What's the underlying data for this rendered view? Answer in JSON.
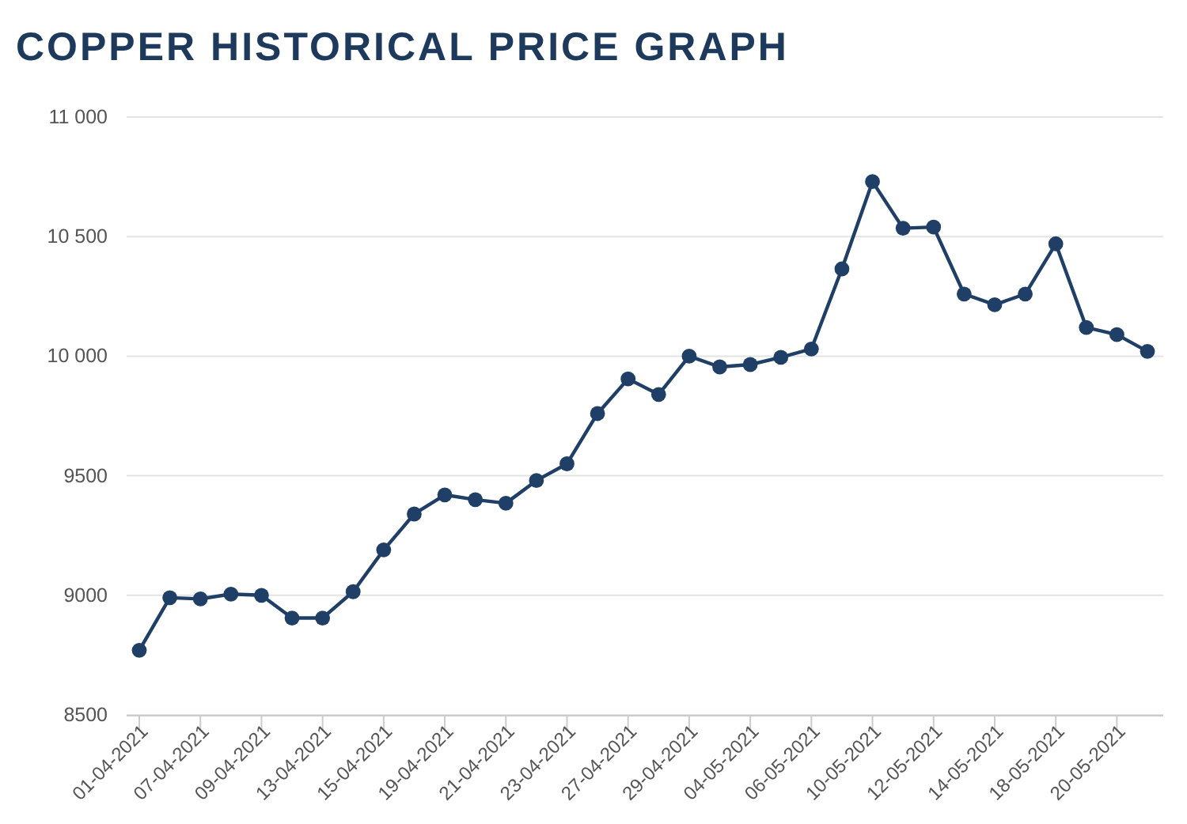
{
  "chart_data": {
    "type": "line",
    "title": "COPPER HISTORICAL PRICE GRAPH",
    "categories": [
      "01-04-2021",
      null,
      "07-04-2021",
      null,
      "09-04-2021",
      null,
      "13-04-2021",
      null,
      "15-04-2021",
      null,
      "19-04-2021",
      null,
      "21-04-2021",
      null,
      "23-04-2021",
      null,
      "27-04-2021",
      null,
      "29-04-2021",
      null,
      "04-05-2021",
      null,
      "06-05-2021",
      null,
      "10-05-2021",
      null,
      "12-05-2021",
      null,
      "14-05-2021",
      null,
      "18-05-2021",
      null,
      "20-05-2021",
      null
    ],
    "series": [
      {
        "color": "#1f3f66",
        "values": [
          8770,
          8990,
          8985,
          9005,
          9000,
          8905,
          8905,
          9015,
          9190,
          9340,
          9420,
          9400,
          9385,
          9480,
          9550,
          9760,
          9905,
          9840,
          10000,
          9955,
          9965,
          9995,
          10030,
          10365,
          10730,
          10535,
          10540,
          10260,
          10215,
          10260,
          10470,
          10120,
          10090,
          10020
        ]
      }
    ],
    "ylim": [
      8500,
      11000
    ],
    "yticks": [
      8500,
      9000,
      9500,
      {
        "value": 10000,
        "label": "10 000"
      },
      {
        "value": 10500,
        "label": "10 500"
      },
      {
        "value": 11000,
        "label": "11 000"
      }
    ],
    "grid": "y",
    "marker": "circle",
    "line_style": "solid"
  }
}
